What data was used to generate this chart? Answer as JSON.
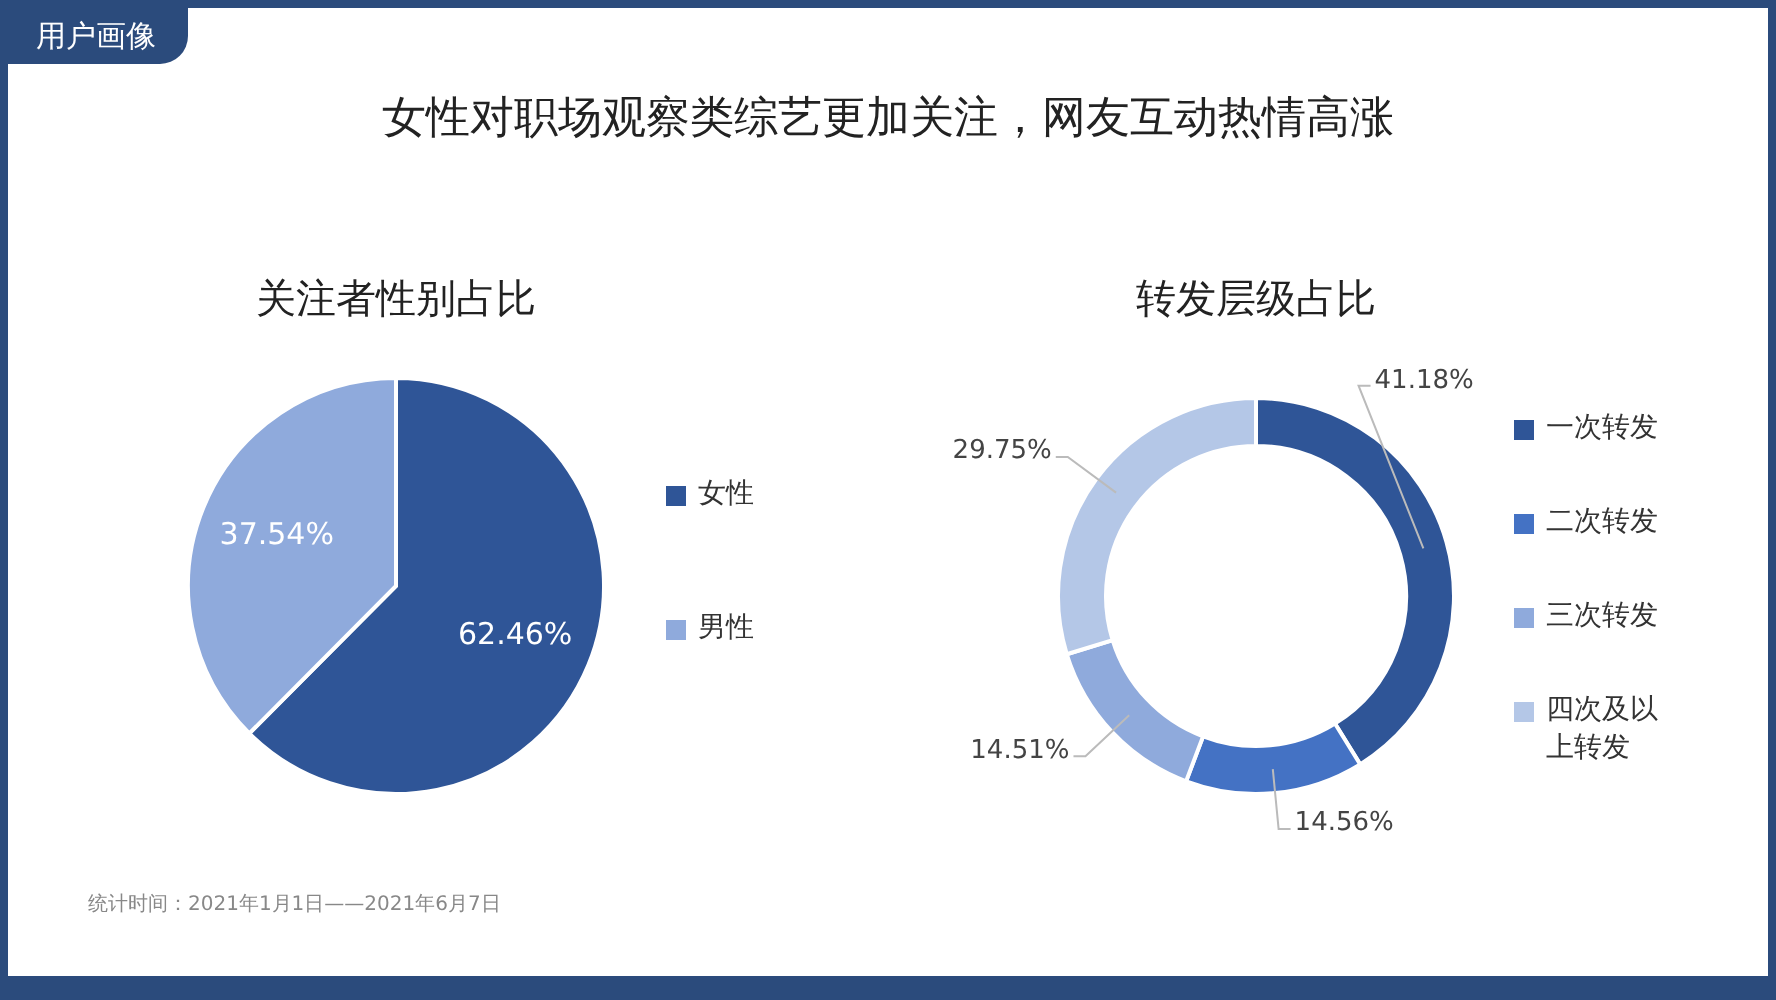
{
  "chart_data": [
    {
      "type": "other",
      "title": "女性对职场观察类综艺更加关注，网友互动热情高涨",
      "annotations": [
        "用户画像",
        "统计时间：2021年1月1日——2021年6月7日"
      ]
    },
    {
      "type": "pie",
      "title": "关注者性别占比",
      "categories": [
        "女性",
        "男性"
      ],
      "values": [
        62.46,
        37.54
      ],
      "colors": [
        "#2f5597",
        "#8faadc"
      ],
      "value_labels": [
        "62.46%",
        "37.54%"
      ],
      "legend": "right"
    },
    {
      "type": "donut",
      "title": "转发层级占比",
      "categories": [
        "一次转发",
        "二次转发",
        "三次转发",
        "四次及以上转发"
      ],
      "values": [
        41.18,
        14.56,
        14.51,
        29.75
      ],
      "colors": [
        "#2f5597",
        "#4472c4",
        "#8faadc",
        "#b4c7e7"
      ],
      "value_labels": [
        "41.18%",
        "14.56%",
        "14.51%",
        "29.75%"
      ],
      "legend": "right"
    }
  ]
}
